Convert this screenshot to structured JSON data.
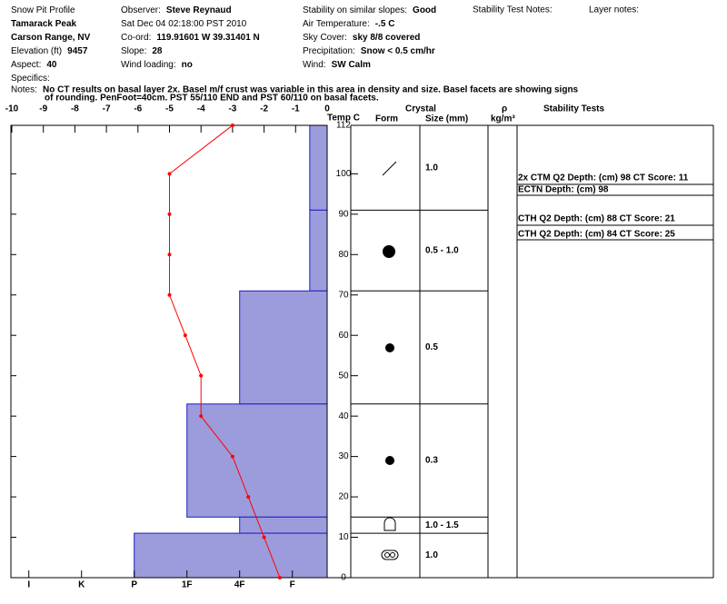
{
  "header": {
    "columns": [
      [
        {
          "label": "Snow Pit Profile"
        },
        {
          "value": "Tamarack Peak"
        },
        {
          "value": "Carson Range, NV"
        },
        {
          "label": "Elevation (ft)",
          "value": "9457"
        },
        {
          "label": "Aspect:",
          "value": "40"
        },
        {
          "label": "Specifics:"
        }
      ],
      [
        {
          "label": "Observer:",
          "value": "Steve Reynaud"
        },
        {
          "label": "Sat Dec 04 02:18:00 PST 2010"
        },
        {
          "label": "Co-ord:",
          "value": "119.91601 W 39.31401 N"
        },
        {
          "label": "Slope:",
          "value": "28"
        },
        {
          "label": "Wind loading:",
          "value": "no"
        }
      ],
      [
        {
          "label": "Stability on similar slopes:",
          "value": "Good"
        },
        {
          "label": "Air Temperature:",
          "value": "-.5 C"
        },
        {
          "label": "Sky Cover:",
          "value": "sky 8/8 covered"
        },
        {
          "label": "Precipitation:",
          "value": "Snow < 0.5 cm/hr"
        },
        {
          "label": "Wind:",
          "value": "SW Calm"
        }
      ]
    ],
    "test_notes_label": "Stability Test Notes:",
    "layer_notes_label": "Layer notes:"
  },
  "notes": {
    "label": "Notes:",
    "lines": [
      "No CT results on basal layer 2x.  Basel m/f crust was variable in this area in density and size.  Basel facets are showing signs",
      "of rounding.  PenFoot=40cm.  PST 55/110 END and PST 60/110 on basal facets."
    ]
  },
  "columns": {
    "temp": "Temp C",
    "crystal": "Crystal",
    "form": "Form",
    "size": "Size (mm)",
    "rho": "ρ",
    "density": "kg/m³",
    "tests": "Stability Tests"
  },
  "stability_tests": [
    "2x CTM Q2 Depth: (cm) 98 CT Score: 11",
    "ECTN  Depth: (cm) 98",
    "CTH Q2 Depth: (cm) 88 CT Score: 21",
    "CTH Q2 Depth: (cm) 84 CT Score: 25"
  ],
  "chart_data": {
    "type": "profile",
    "ylim": [
      0,
      112
    ],
    "yticks": [
      0,
      10,
      20,
      30,
      40,
      50,
      60,
      70,
      80,
      90,
      100,
      112
    ],
    "temperature": {
      "color": "#ff0000",
      "xlim": [
        -10,
        0
      ],
      "xticks": [
        -10,
        -9,
        -8,
        -7,
        -6,
        -5,
        -4,
        -3,
        -2,
        -1,
        0
      ],
      "depths": [
        112,
        100,
        90,
        80,
        70,
        60,
        50,
        40,
        30,
        20,
        10,
        0
      ],
      "values": [
        -3,
        -5,
        -5,
        -5,
        -5,
        -4.5,
        -4,
        -4,
        -3,
        -2.5,
        -2,
        -1.5
      ]
    },
    "hardness": {
      "color": "#9c9cdc",
      "edge_color": "#1c1cc8",
      "xlim": [
        6.34,
        0.34
      ],
      "xticks": [
        {
          "value": 6,
          "label": "I"
        },
        {
          "value": 5,
          "label": "K"
        },
        {
          "value": 4,
          "label": "P"
        },
        {
          "value": 3,
          "label": "1F"
        },
        {
          "value": 2,
          "label": "4F"
        },
        {
          "value": 1,
          "label": "F"
        }
      ]
    },
    "layers": [
      {
        "top": 112,
        "bottom": 91,
        "hardness": 0.67,
        "size": "1.0"
      },
      {
        "top": 91,
        "bottom": 71,
        "hardness": 0.67,
        "size": "0.5 -  1.0"
      },
      {
        "top": 71,
        "bottom": 43,
        "hardness": 2,
        "size": "0.5"
      },
      {
        "top": 43,
        "bottom": 15,
        "hardness": 3,
        "size": "0.3"
      },
      {
        "top": 15,
        "bottom": 11,
        "hardness": 2,
        "size": "1.0 -  1.5"
      },
      {
        "top": 11,
        "bottom": 0,
        "hardness": 4,
        "size": "1.0"
      }
    ]
  }
}
